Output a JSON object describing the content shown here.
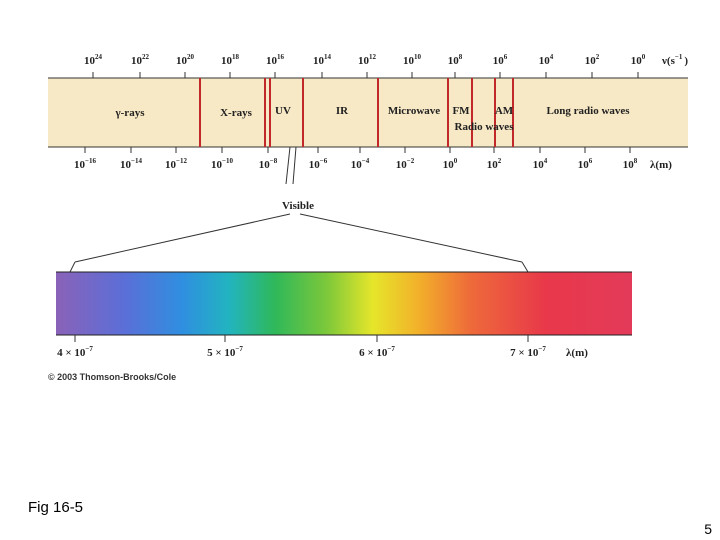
{
  "frequency_axis": {
    "ticks": [
      {
        "base": "10",
        "exp": "24"
      },
      {
        "base": "10",
        "exp": "22"
      },
      {
        "base": "10",
        "exp": "20"
      },
      {
        "base": "10",
        "exp": "18"
      },
      {
        "base": "10",
        "exp": "16"
      },
      {
        "base": "10",
        "exp": "14"
      },
      {
        "base": "10",
        "exp": "12"
      },
      {
        "base": "10",
        "exp": "10"
      },
      {
        "base": "10",
        "exp": "8"
      },
      {
        "base": "10",
        "exp": "6"
      },
      {
        "base": "10",
        "exp": "4"
      },
      {
        "base": "10",
        "exp": "2"
      },
      {
        "base": "10",
        "exp": "0"
      }
    ],
    "label": {
      "text": "ν(s",
      "exp": "−1",
      "end": ")"
    }
  },
  "wavelength_axis": {
    "ticks": [
      {
        "base": "10",
        "exp": "−16"
      },
      {
        "base": "10",
        "exp": "−14"
      },
      {
        "base": "10",
        "exp": "−12"
      },
      {
        "base": "10",
        "exp": "−10"
      },
      {
        "base": "10",
        "exp": "−8"
      },
      {
        "base": "10",
        "exp": "−6"
      },
      {
        "base": "10",
        "exp": "−4"
      },
      {
        "base": "10",
        "exp": "−2"
      },
      {
        "base": "10",
        "exp": "0"
      },
      {
        "base": "10",
        "exp": "2"
      },
      {
        "base": "10",
        "exp": "4"
      },
      {
        "base": "10",
        "exp": "6"
      },
      {
        "base": "10",
        "exp": "8"
      }
    ],
    "label": "λ(m)"
  },
  "bands": [
    "γ-rays",
    "X-rays",
    "UV",
    "IR",
    "Microwave",
    "FM",
    "AM",
    "Radio waves",
    "Long radio waves"
  ],
  "visible": {
    "label": "Visible",
    "ticks": [
      {
        "coef": "4 × ",
        "base": "10",
        "exp": "−7"
      },
      {
        "coef": "5 × ",
        "base": "10",
        "exp": "−7"
      },
      {
        "coef": "6 × ",
        "base": "10",
        "exp": "−7"
      },
      {
        "coef": "7 × ",
        "base": "10",
        "exp": "−7"
      }
    ],
    "axis_label": "λ(m)"
  },
  "copyright": "© 2003 Thomson-Brooks/Cole",
  "caption": "Fig 16-5",
  "page_number": "5"
}
